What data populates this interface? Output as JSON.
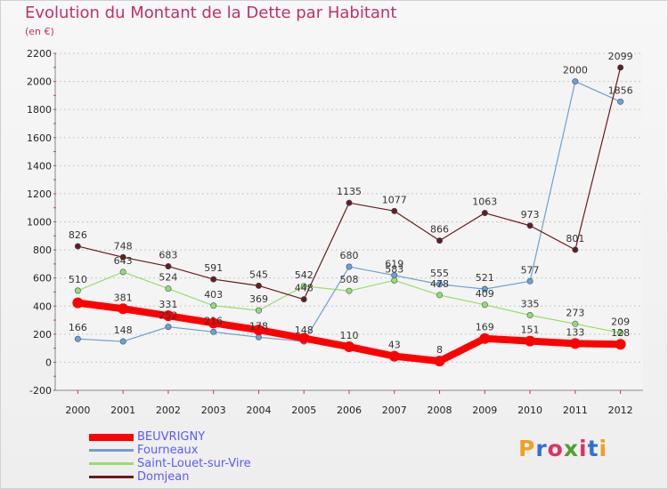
{
  "header": {
    "title": "Evolution du Montant de la Dette par Habitant",
    "unit": "(en €)"
  },
  "logo": {
    "text": "Proxiti",
    "colors": [
      "#f0a020",
      "#3070d0",
      "#e03060",
      "#50a030",
      "#e03060",
      "#3070d0",
      "#f0a020"
    ]
  },
  "chart_data": {
    "type": "line",
    "title": "Evolution du Montant de la Dette par Habitant",
    "subtitle": "(en €)",
    "xlabel": "",
    "ylabel": "",
    "categories": [
      "2000",
      "2001",
      "2002",
      "2003",
      "2004",
      "2005",
      "2006",
      "2007",
      "2008",
      "2009",
      "2010",
      "2011",
      "2012"
    ],
    "ylim": [
      -200,
      2200
    ],
    "yticks": [
      -200,
      0,
      200,
      400,
      600,
      800,
      1000,
      1200,
      1400,
      1600,
      1800,
      2000,
      2200
    ],
    "grid": "horizontal",
    "legend": "bottom-left",
    "series": [
      {
        "name": "BEUVRIGNY",
        "color": "#ff0000",
        "values": [
          423,
          381,
          331,
          279,
          230,
          171,
          110,
          43,
          8,
          169,
          151,
          133,
          128
        ],
        "labeled": [
          false,
          true,
          true,
          false,
          false,
          false,
          true,
          true,
          true,
          true,
          true,
          true,
          true
        ]
      },
      {
        "name": "Fourneaux",
        "color": "#6f9fcf",
        "values": [
          166,
          148,
          252,
          216,
          178,
          148,
          680,
          619,
          555,
          521,
          577,
          2000,
          1856
        ],
        "labeled": [
          true,
          true,
          true,
          true,
          true,
          true,
          true,
          true,
          true,
          true,
          true,
          true,
          true
        ]
      },
      {
        "name": "Saint-Louet-sur-Vire",
        "color": "#99dd66",
        "values": [
          510,
          643,
          524,
          403,
          369,
          542,
          508,
          583,
          478,
          409,
          335,
          273,
          209
        ],
        "labeled": [
          true,
          true,
          true,
          true,
          true,
          true,
          true,
          true,
          true,
          true,
          true,
          true,
          true
        ]
      },
      {
        "name": "Domjean",
        "color": "#6b1a1a",
        "values": [
          826,
          748,
          683,
          591,
          545,
          448,
          1135,
          1077,
          866,
          1063,
          973,
          801,
          2099
        ],
        "labeled": [
          true,
          true,
          true,
          true,
          true,
          true,
          true,
          true,
          true,
          true,
          true,
          true,
          true
        ]
      }
    ]
  }
}
